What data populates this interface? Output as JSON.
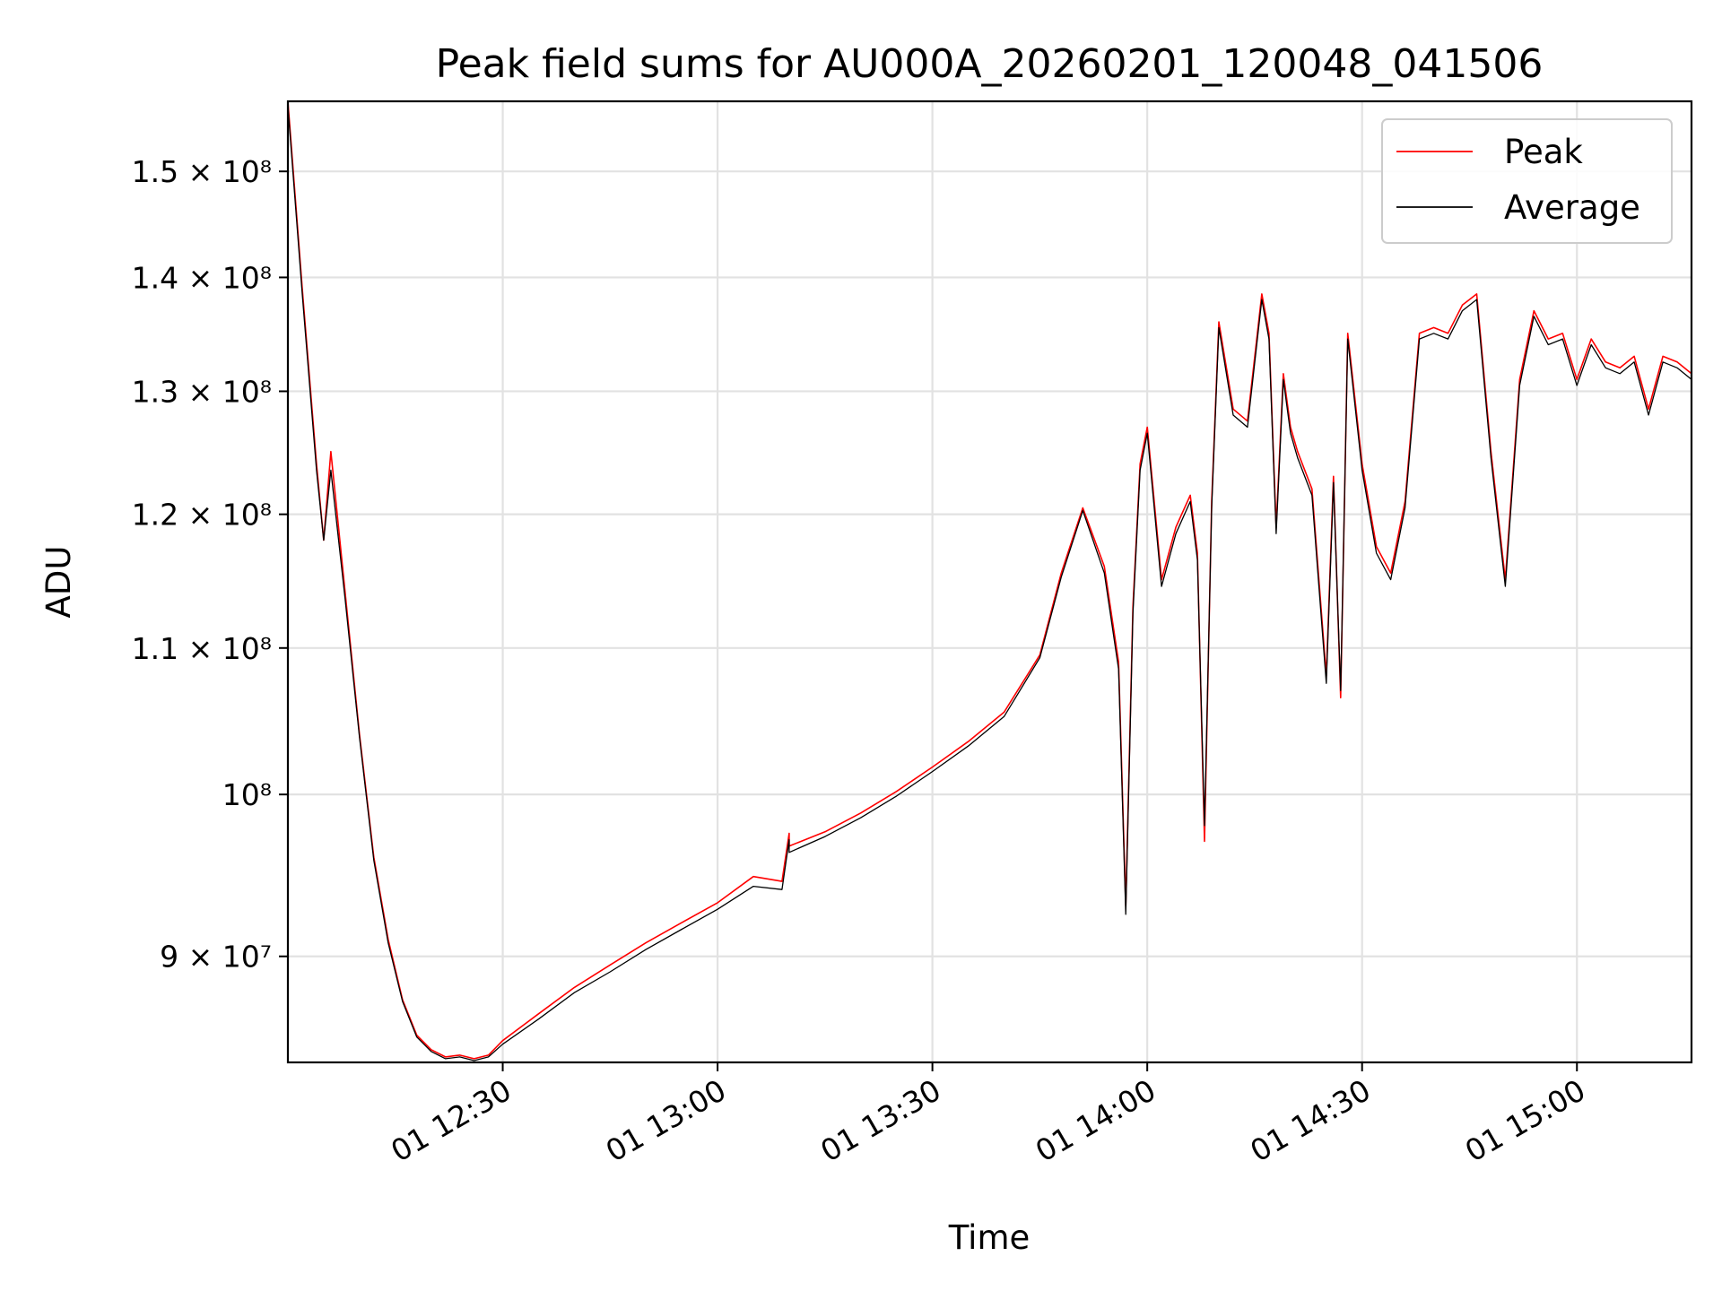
{
  "chart_data": {
    "type": "line",
    "title": "Peak field sums for AU000A_20260201_120048_041506",
    "xlabel": "Time",
    "ylabel": "ADU",
    "yscale": "log",
    "xlim": [
      "01 12:00",
      "01 15:16"
    ],
    "ylim": [
      84000000,
      157000000
    ],
    "grid": true,
    "legend_position": "top-right",
    "x_ticks": [
      {
        "value": "01 12:30",
        "label": "01 12:30"
      },
      {
        "value": "01 13:00",
        "label": "01 13:00"
      },
      {
        "value": "01 13:30",
        "label": "01 13:30"
      },
      {
        "value": "01 14:00",
        "label": "01 14:00"
      },
      {
        "value": "01 14:30",
        "label": "01 14:30"
      },
      {
        "value": "01 15:00",
        "label": "01 15:00"
      }
    ],
    "y_ticks": [
      {
        "value": 90000000,
        "label": "9 × 10⁷"
      },
      {
        "value": 100000000,
        "label": "10⁸"
      },
      {
        "value": 110000000,
        "label": "1.1 × 10⁸"
      },
      {
        "value": 120000000,
        "label": "1.2 × 10⁸"
      },
      {
        "value": 130000000,
        "label": "1.3 × 10⁸"
      },
      {
        "value": 140000000,
        "label": "1.4 × 10⁸"
      },
      {
        "value": 150000000,
        "label": "1.5 × 10⁸"
      }
    ],
    "x": [
      "01 12:00",
      "01 12:02",
      "01 12:04",
      "01 12:05",
      "01 12:06",
      "01 12:08",
      "01 12:10",
      "01 12:12",
      "01 12:14",
      "01 12:16",
      "01 12:18",
      "01 12:20",
      "01 12:22",
      "01 12:24",
      "01 12:26",
      "01 12:28",
      "01 12:30",
      "01 12:35",
      "01 12:40",
      "01 12:45",
      "01 12:50",
      "01 12:55",
      "01 13:00",
      "01 13:05",
      "01 13:09",
      "01 13:10",
      "01 13:10",
      "01 13:15",
      "01 13:20",
      "01 13:25",
      "01 13:30",
      "01 13:35",
      "01 13:40",
      "01 13:45",
      "01 13:48",
      "01 13:51",
      "01 13:54",
      "01 13:56",
      "01 13:57",
      "01 13:58",
      "01 13:59",
      "01 14:00",
      "01 14:02",
      "01 14:04",
      "01 14:06",
      "01 14:07",
      "01 14:08",
      "01 14:09",
      "01 14:10",
      "01 14:12",
      "01 14:14",
      "01 14:16",
      "01 14:17",
      "01 14:18",
      "01 14:19",
      "01 14:20",
      "01 14:21",
      "01 14:23",
      "01 14:25",
      "01 14:26",
      "01 14:27",
      "01 14:28",
      "01 14:30",
      "01 14:32",
      "01 14:34",
      "01 14:36",
      "01 14:38",
      "01 14:40",
      "01 14:42",
      "01 14:44",
      "01 14:46",
      "01 14:48",
      "01 14:50",
      "01 14:52",
      "01 14:54",
      "01 14:56",
      "01 14:58",
      "01 15:00",
      "01 15:02",
      "01 15:04",
      "01 15:06",
      "01 15:08",
      "01 15:10",
      "01 15:12",
      "01 15:14",
      "01 15:16"
    ],
    "series": [
      {
        "name": "Peak",
        "color": "#ff0000",
        "values": [
          157000000,
          139000000,
          124000000,
          118000000,
          125000000,
          114000000,
          104000000,
          96000000,
          91000000,
          87500000,
          85500000,
          84700000,
          84300000,
          84400000,
          84200000,
          84400000,
          85200000,
          86700000,
          88200000,
          89500000,
          90800000,
          92000000,
          93200000,
          94800000,
          94500000,
          97500000,
          96700000,
          97600000,
          98800000,
          100200000,
          101800000,
          103500000,
          105500000,
          109500000,
          115500000,
          120500000,
          116000000,
          109000000,
          93000000,
          113000000,
          124000000,
          127000000,
          115000000,
          119000000,
          121500000,
          117000000,
          97000000,
          121000000,
          136000000,
          128500000,
          127500000,
          138500000,
          135000000,
          119000000,
          131500000,
          127000000,
          125000000,
          122000000,
          108000000,
          123000000,
          106500000,
          135000000,
          124000000,
          117500000,
          115500000,
          121000000,
          135000000,
          135500000,
          135000000,
          137500000,
          138500000,
          125000000,
          115000000,
          131000000,
          137000000,
          134500000,
          135000000,
          131000000,
          134500000,
          132500000,
          132000000,
          133000000,
          128500000,
          133000000,
          132500000,
          131500000
        ]
      },
      {
        "name": "Average",
        "color": "#000000",
        "values": [
          156500000,
          138500000,
          123500000,
          118000000,
          123500000,
          113500000,
          103800000,
          95800000,
          90800000,
          87400000,
          85400000,
          84600000,
          84200000,
          84300000,
          84100000,
          84300000,
          85000000,
          86400000,
          87900000,
          89100000,
          90400000,
          91600000,
          92800000,
          94200000,
          94000000,
          97100000,
          96300000,
          97300000,
          98500000,
          99900000,
          101500000,
          103200000,
          105200000,
          109300000,
          115200000,
          120300000,
          115500000,
          108500000,
          92500000,
          112500000,
          123500000,
          126500000,
          114500000,
          118500000,
          121000000,
          116500000,
          98000000,
          120500000,
          135500000,
          128000000,
          127000000,
          138000000,
          134500000,
          118500000,
          131000000,
          126500000,
          124500000,
          121500000,
          107500000,
          122500000,
          107000000,
          134500000,
          123500000,
          117000000,
          115000000,
          120500000,
          134500000,
          135000000,
          134500000,
          137000000,
          138000000,
          124500000,
          114500000,
          130500000,
          136500000,
          134000000,
          134500000,
          130500000,
          134000000,
          132000000,
          131500000,
          132500000,
          128000000,
          132500000,
          132000000,
          131000000
        ]
      }
    ]
  }
}
